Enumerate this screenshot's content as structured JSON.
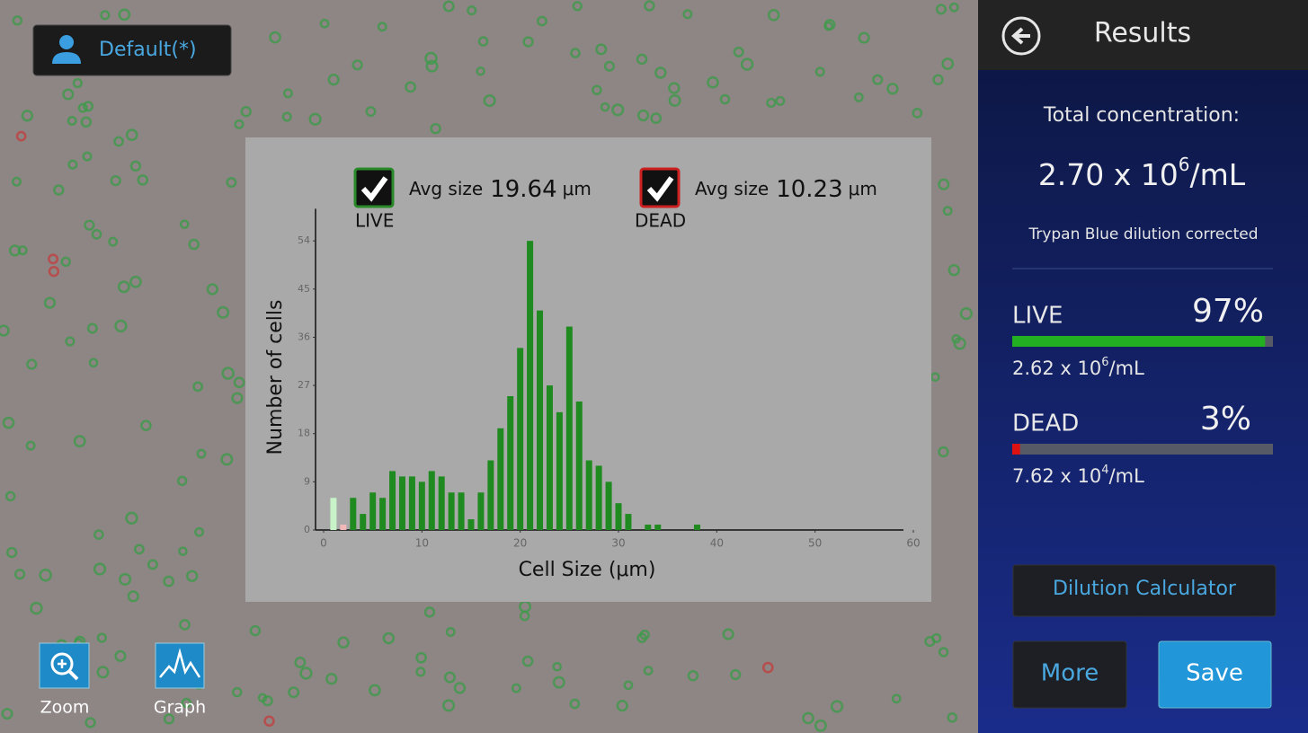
{
  "profile": {
    "label": "Default(*)"
  },
  "tools": [
    {
      "label": "Zoom"
    },
    {
      "label": "Graph"
    }
  ],
  "chart_data": {
    "type": "bar",
    "xlabel": "Cell Size (μm)",
    "ylabel": "Number of cells",
    "xlim": [
      0,
      60
    ],
    "xticks": [
      0,
      10,
      20,
      30,
      40,
      50,
      60
    ],
    "ylim": [
      0,
      60
    ],
    "yticks": [
      0,
      9,
      18,
      27,
      36,
      45,
      54
    ],
    "series": [
      {
        "name": "LIVE",
        "color": "#2a8a2a",
        "checked": true,
        "avg_label": "Avg size",
        "avg_size": 19.64,
        "avg_unit": "μm",
        "x": [
          1,
          3,
          4,
          5,
          6,
          7,
          8,
          9,
          10,
          11,
          12,
          13,
          14,
          15,
          16,
          17,
          18,
          19,
          20,
          21,
          22,
          23,
          24,
          25,
          26,
          27,
          28,
          29,
          30,
          31,
          33,
          34,
          38
        ],
        "values": [
          6,
          6,
          3,
          7,
          6,
          11,
          10,
          10,
          9,
          11,
          10,
          7,
          7,
          2,
          7,
          13,
          19,
          25,
          34,
          54,
          41,
          27,
          22,
          38,
          24,
          13,
          12,
          9,
          5,
          3,
          1,
          1,
          1
        ],
        "colors": [
          "#c8f2c8",
          "#1f8a1f",
          "#1f8a1f",
          "#1f8a1f",
          "#1f8a1f",
          "#1f8a1f",
          "#1f8a1f",
          "#1f8a1f",
          "#1f8a1f",
          "#1f8a1f",
          "#1f8a1f",
          "#1f8a1f",
          "#1f8a1f",
          "#1f8a1f",
          "#1f8a1f",
          "#1f8a1f",
          "#1f8a1f",
          "#1f8a1f",
          "#1f8a1f",
          "#1f8a1f",
          "#1f8a1f",
          "#1f8a1f",
          "#1f8a1f",
          "#1f8a1f",
          "#1f8a1f",
          "#1f8a1f",
          "#1f8a1f",
          "#1f8a1f",
          "#1f8a1f",
          "#1f8a1f",
          "#1f8a1f",
          "#1f8a1f",
          "#1f8a1f"
        ]
      },
      {
        "name": "DEAD",
        "color": "#cc2020",
        "checked": true,
        "avg_label": "Avg size",
        "avg_size": 10.23,
        "avg_unit": "μm",
        "x": [
          2
        ],
        "values": [
          1
        ],
        "colors": [
          "#f2b8b8"
        ]
      }
    ]
  },
  "panel": {
    "title": "Results",
    "total_label": "Total concentration:",
    "total": {
      "base": "2.70 x 10",
      "exponent": "6",
      "unit": "/mL"
    },
    "note": "Trypan Blue dilution corrected",
    "groups": [
      {
        "name": "LIVE",
        "percent": 97,
        "percent_label": "97%",
        "color": "#22b022",
        "conc": {
          "base": "2.62 x 10",
          "exponent": "6",
          "unit": "/mL"
        }
      },
      {
        "name": "DEAD",
        "percent": 3,
        "percent_label": "3%",
        "color": "#dd1111",
        "conc": {
          "base": "7.62 x 10",
          "exponent": "4",
          "unit": "/mL"
        }
      }
    ],
    "buttons": {
      "dilution": "Dilution Calculator",
      "more": "More",
      "save": "Save"
    }
  }
}
